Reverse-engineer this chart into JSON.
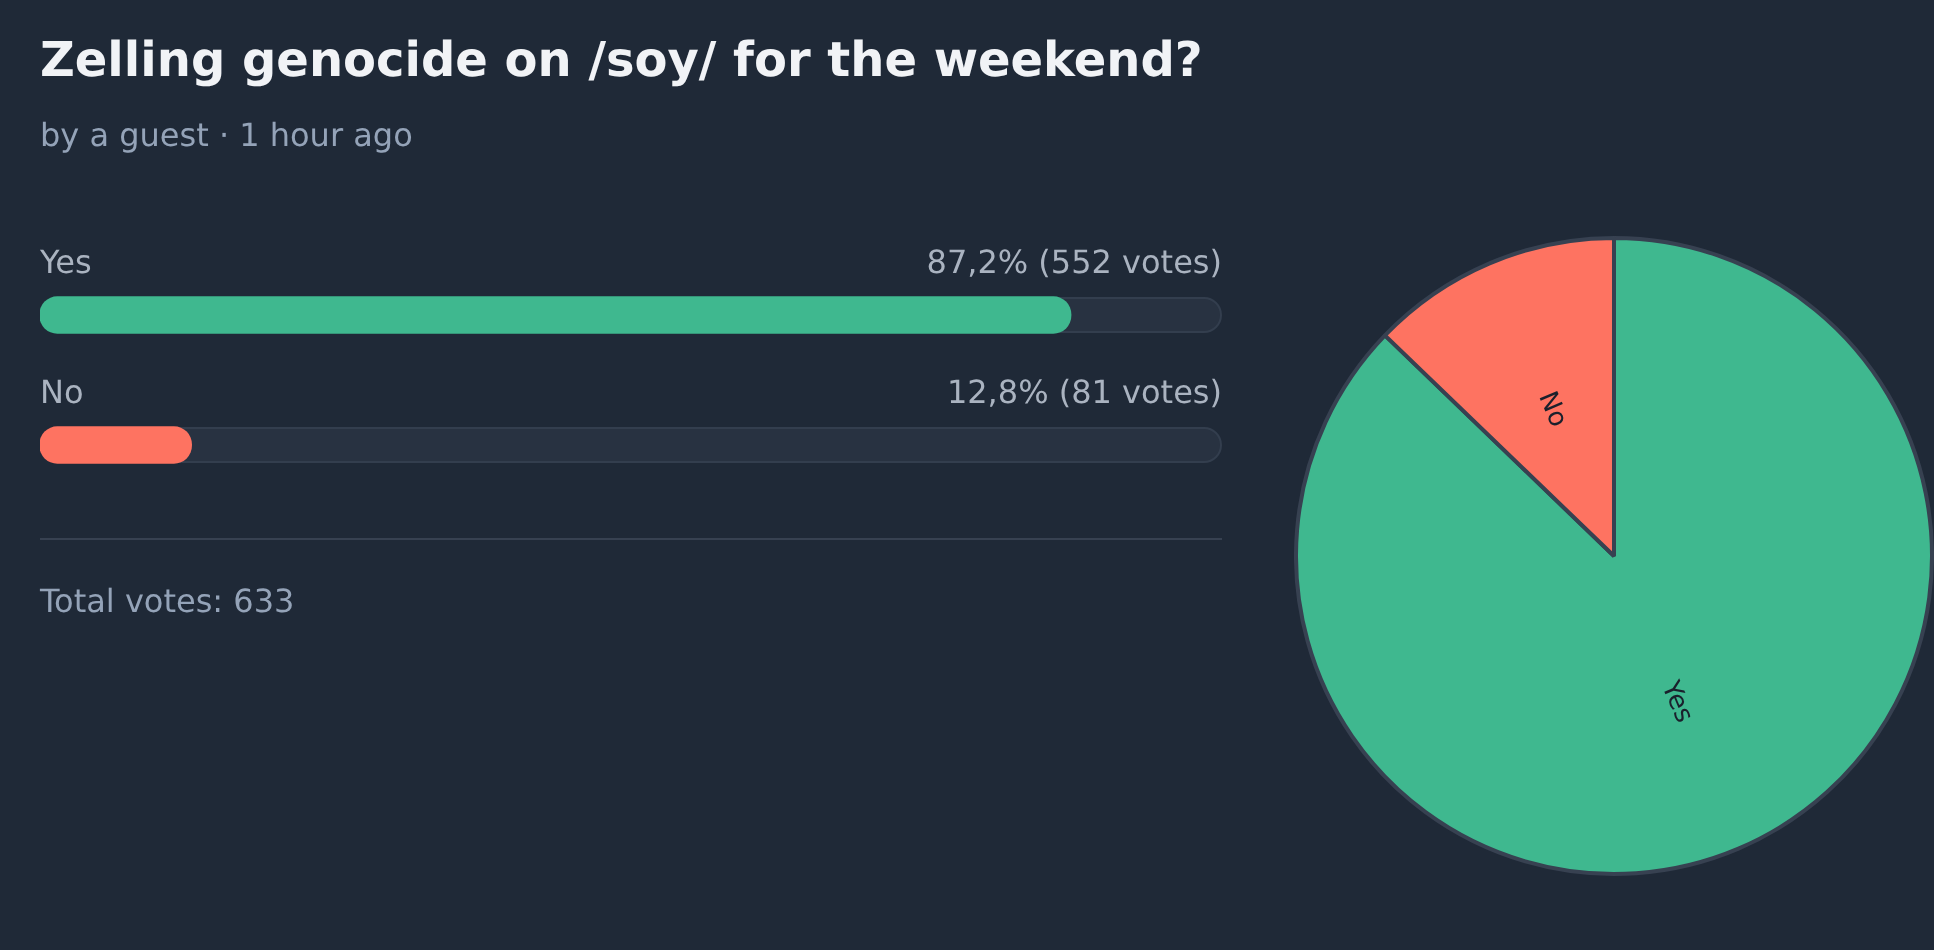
{
  "chart_data": [
    {
      "type": "bar",
      "orientation": "horizontal",
      "title": "Zelling genocide on /soy/ for the weekend?",
      "subtitle": "by a guest · 1 hour ago",
      "categories": [
        "Yes",
        "No"
      ],
      "values": [
        87.2,
        12.8
      ],
      "colors": [
        "#3fb88f",
        "#fe7361"
      ],
      "xlim": [
        0,
        100
      ],
      "value_labels": [
        "87,2% (552 votes)",
        "12,8% (81 votes)"
      ],
      "annotations": [
        "Total votes: 633"
      ]
    },
    {
      "type": "pie",
      "categories": [
        "Yes",
        "No"
      ],
      "values": [
        87.2,
        12.8
      ],
      "colors": [
        "#3fb88f",
        "#fe7361"
      ]
    }
  ]
}
